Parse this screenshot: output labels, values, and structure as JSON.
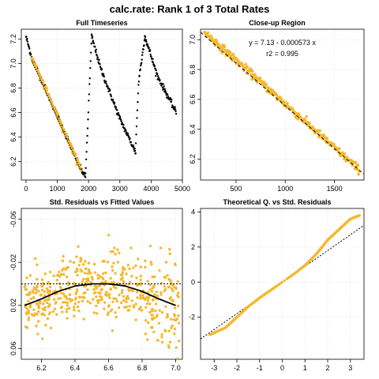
{
  "title": "calc.rate: Rank 1 of 3 Total Rates",
  "colors": {
    "highlight": "#F5B82E",
    "series": "#000000",
    "fit": "#000000"
  },
  "chart_data": [
    {
      "id": "full",
      "type": "scatter",
      "title": "Full Timeseries",
      "xlim": [
        -150,
        5000
      ],
      "ylim": [
        6.05,
        7.28
      ],
      "xticks": [
        0,
        1000,
        2000,
        3000,
        4000,
        5000
      ],
      "xtick_labels": [
        "0",
        "1000",
        "2000",
        "3000",
        "4000",
        "5000"
      ],
      "yticks": [
        6.2,
        6.4,
        6.6,
        6.8,
        7.0,
        7.2
      ],
      "ytick_labels": [
        "6.2",
        "6.4",
        "6.6",
        "6.8",
        "7.0",
        "7.2"
      ],
      "ytick_rotated": true,
      "grid": true,
      "segments": [
        {
          "x": [
            0,
            180,
            1750,
            1900
          ],
          "y": [
            7.22,
            7.05,
            6.14,
            6.08
          ],
          "color": "series"
        },
        {
          "x": [
            1900,
            2100
          ],
          "y": [
            6.08,
            7.22
          ],
          "color": "series"
        },
        {
          "x": [
            2100,
            2400,
            3000,
            3500
          ],
          "y": [
            7.22,
            6.95,
            6.55,
            6.28
          ],
          "color": "series"
        },
        {
          "x": [
            3500,
            3600,
            3800
          ],
          "y": [
            6.28,
            6.85,
            7.22
          ],
          "color": "series"
        },
        {
          "x": [
            3800,
            4200,
            4800
          ],
          "y": [
            7.22,
            6.9,
            6.6
          ],
          "color": "series"
        },
        {
          "x": [
            180,
            1750
          ],
          "y": [
            7.05,
            6.14
          ],
          "color": "highlight"
        }
      ],
      "fit_line": {
        "x": [
          180,
          1750
        ],
        "y": [
          7.027,
          6.127
        ]
      }
    },
    {
      "id": "closeup",
      "type": "scatter",
      "title": "Close-up Region",
      "xlim": [
        140,
        1800
      ],
      "ylim": [
        6.06,
        7.07
      ],
      "xticks": [
        500,
        1000,
        1500
      ],
      "xtick_labels": [
        "500",
        "1000",
        "1500"
      ],
      "yticks": [
        6.2,
        6.4,
        6.6,
        6.8,
        7.0
      ],
      "ytick_labels": [
        "6.2",
        "6.4",
        "6.6",
        "6.8",
        "7.0"
      ],
      "ytick_rotated": true,
      "grid": true,
      "series_range": {
        "x": [
          180,
          1750
        ],
        "y": [
          7.05,
          6.13
        ]
      },
      "fit_line": {
        "intercept": 7.13,
        "slope": -0.000573
      },
      "annotations": [
        "y = 7.13 - 0.000573 x",
        "r2 = 0.995"
      ]
    },
    {
      "id": "resid_fitted",
      "type": "scatter",
      "title": "Std. Residuals vs Fitted Values",
      "xlim": [
        6.08,
        7.04
      ],
      "ylim": [
        0.07,
        -0.07
      ],
      "xticks": [
        6.2,
        6.4,
        6.6,
        6.8,
        7.0
      ],
      "xtick_labels": [
        "6.2",
        "6.4",
        "6.6",
        "6.8",
        "7.0"
      ],
      "yticks": [
        -0.06,
        -0.02,
        0.02,
        0.06
      ],
      "ytick_labels": [
        "-0.06",
        "-0.02",
        "0.02",
        "0.06"
      ],
      "ytick_rotated": true,
      "grid": true,
      "zero_line": 0.0,
      "smooth_curve": {
        "x": [
          6.1,
          6.2,
          6.3,
          6.4,
          6.5,
          6.6,
          6.7,
          6.8,
          6.9,
          7.0
        ],
        "y": [
          0.02,
          0.014,
          0.007,
          0.002,
          0.0,
          0.0,
          0.002,
          0.007,
          0.014,
          0.02
        ]
      }
    },
    {
      "id": "qq",
      "type": "scatter",
      "title": "Theoretical Q. vs Std. Residuals",
      "xlim": [
        -3.6,
        3.6
      ],
      "ylim": [
        -4.4,
        4.2
      ],
      "xticks": [
        -3,
        -2,
        -1,
        0,
        1,
        2,
        3
      ],
      "xtick_labels": [
        "-3",
        "-2",
        "-1",
        "0",
        "1",
        "2",
        "3"
      ],
      "yticks": [
        -2,
        0,
        2,
        4
      ],
      "ytick_labels": [
        "-2",
        "0",
        "2",
        "4"
      ],
      "ytick_rotated": false,
      "grid": true,
      "reference_line": {
        "intercept": 0,
        "slope": 0.9
      },
      "quantile_curve": {
        "x": [
          -3.2,
          -2.5,
          -2.0,
          -1.5,
          -1.0,
          -0.5,
          0.0,
          0.5,
          1.0,
          1.5,
          2.0,
          2.5,
          3.0,
          3.4
        ],
        "y": [
          -3.0,
          -2.6,
          -2.0,
          -1.4,
          -0.9,
          -0.45,
          0.0,
          0.45,
          0.95,
          1.6,
          2.4,
          3.0,
          3.6,
          3.8
        ]
      }
    }
  ]
}
